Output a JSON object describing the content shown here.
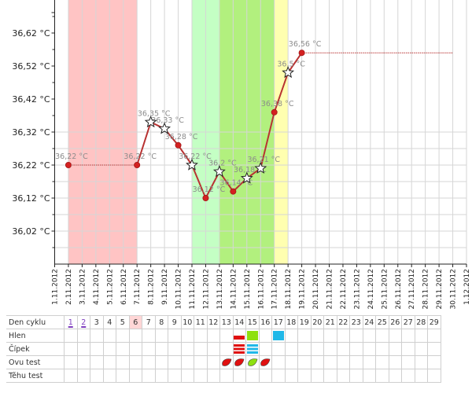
{
  "chart_data": {
    "type": "line",
    "title": "",
    "xlabel": "",
    "ylabel": "",
    "y_ticks": [
      "36,02 °C",
      "36,12 °C",
      "36,22 °C",
      "36,32 °C",
      "36,42 °C",
      "36,52 °C",
      "36,62 °C"
    ],
    "ylim": [
      35.92,
      36.72
    ],
    "x_dates": [
      "1.11.2012",
      "2.11.2012",
      "3.11.2012",
      "4.11.2012",
      "5.11.2012",
      "6.11.2012",
      "7.11.2012",
      "8.11.2012",
      "9.11.2012",
      "10.11.2012",
      "11.11.2012",
      "12.11.2012",
      "13.11.2012",
      "14.11.2012",
      "15.11.2012",
      "16.11.2012",
      "17.11.2012",
      "18.11.2012",
      "19.11.2012",
      "20.11.2012",
      "21.11.2012",
      "22.11.2012",
      "23.11.2012",
      "24.11.2012",
      "25.11.2012",
      "26.11.2012",
      "27.11.2012",
      "28.11.2012",
      "29.11.2012",
      "30.11.2012",
      "1.12.2012"
    ],
    "bands": [
      {
        "from": "2.11.2012",
        "to": "7.11.2012",
        "color": "#ffc4c4"
      },
      {
        "from": "11.11.2012",
        "to": "13.11.2012",
        "color": "#c4ffc4"
      },
      {
        "from": "13.11.2012",
        "to": "17.11.2012",
        "color": "#b2f07e"
      },
      {
        "from": "17.11.2012",
        "to": "18.11.2012",
        "color": "#ffffb0"
      }
    ],
    "series_color": "#b83232",
    "points": [
      {
        "date": "2.11.2012",
        "value": 36.22,
        "label": "36,22 °C",
        "marker": "dot"
      },
      {
        "date": "7.11.2012",
        "value": 36.22,
        "label": "36,22 °C",
        "marker": "dot"
      },
      {
        "date": "8.11.2012",
        "value": 36.35,
        "label": "36,35 °C",
        "marker": "star"
      },
      {
        "date": "9.11.2012",
        "value": 36.33,
        "label": "36,33 °C",
        "marker": "star"
      },
      {
        "date": "10.11.2012",
        "value": 36.28,
        "label": "36,28 °C",
        "marker": "dot"
      },
      {
        "date": "11.11.2012",
        "value": 36.22,
        "label": "36,22 °C",
        "marker": "star"
      },
      {
        "date": "12.11.2012",
        "value": 36.12,
        "label": "36,12 °C",
        "marker": "dot"
      },
      {
        "date": "13.11.2012",
        "value": 36.2,
        "label": "36,2 °C",
        "marker": "star"
      },
      {
        "date": "14.11.2012",
        "value": 36.14,
        "label": "36,14 °C",
        "marker": "dot"
      },
      {
        "date": "15.11.2012",
        "value": 36.18,
        "label": "36,18 °C",
        "marker": "star"
      },
      {
        "date": "16.11.2012",
        "value": 36.21,
        "label": "36,21 °C",
        "marker": "star"
      },
      {
        "date": "17.11.2012",
        "value": 36.38,
        "label": "36,38 °C",
        "marker": "dot"
      },
      {
        "date": "18.11.2012",
        "value": 36.5,
        "label": "36,5 °C",
        "marker": "star"
      },
      {
        "date": "19.11.2012",
        "value": 36.56,
        "label": "36,56 °C",
        "marker": "dot"
      }
    ],
    "dotted_segments": [
      {
        "from": "2.11.2012",
        "to": "7.11.2012",
        "value": 36.22
      },
      {
        "from": "19.11.2012",
        "to": "30.11.2012",
        "value": 36.56
      }
    ]
  },
  "cycle_table": {
    "row_labels": [
      "Den cyklu",
      "Hlen",
      "Čípek",
      "Ovu test",
      "Těhu test"
    ],
    "days": [
      "",
      "1",
      "2",
      "3",
      "4",
      "5",
      "6",
      "7",
      "8",
      "9",
      "10",
      "11",
      "12",
      "13",
      "14",
      "15",
      "16",
      "17",
      "18",
      "19",
      "20",
      "21",
      "22",
      "23",
      "24",
      "25",
      "26",
      "27",
      "28",
      "29"
    ],
    "period_days": [
      "1",
      "2"
    ],
    "highlight_day": "6",
    "hlen": [
      {
        "day": "14",
        "kind": "red-bar"
      },
      {
        "day": "15",
        "kind": "green-block"
      },
      {
        "day": "17",
        "kind": "cyan-block"
      }
    ],
    "cipek": [
      {
        "day": "14",
        "kind": "red-lines"
      },
      {
        "day": "15",
        "kind": "cyan-lines"
      }
    ],
    "ovu_test": [
      {
        "day": "13",
        "kind": "red-leaf"
      },
      {
        "day": "14",
        "kind": "red-leaf"
      },
      {
        "day": "15",
        "kind": "green-leaf"
      },
      {
        "day": "16",
        "kind": "red-leaf"
      }
    ],
    "colors": {
      "red": "#e01010",
      "green": "#8ee010",
      "cyan": "#20b8e8"
    }
  }
}
